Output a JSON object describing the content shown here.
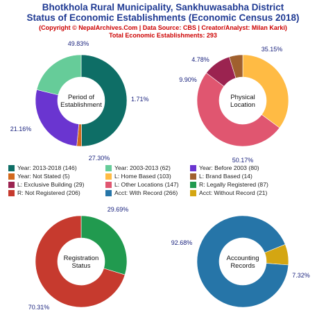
{
  "header": {
    "title_line1": "Bhotkhola Rural Municipality, Sankhuwasabha District",
    "title_line2": "Status of Economic Establishments (Economic Census 2018)",
    "credit": "(Copyright © NepalArchives.Com | Data Source: CBS | Creator/Analyst: Milan Karki)",
    "total": "Total Economic Establishments: 293"
  },
  "colors": {
    "year_2013_2018": "#0e6e66",
    "year_2003_2013": "#66cc99",
    "year_before_2003": "#6a35d0",
    "year_not_stated": "#d2691e",
    "home_based": "#ffbb44",
    "brand_based": "#a0602e",
    "exclusive_building": "#9b2350",
    "other_locations": "#e05670",
    "legally_registered": "#219a4f",
    "not_registered": "#c63a2e",
    "with_record": "#2675a8",
    "without_record": "#d4a612"
  },
  "chart_data": [
    {
      "type": "pie",
      "center_label": [
        "Period of",
        "Establishment"
      ],
      "slices": [
        {
          "label": "Year: 2013-2018",
          "value": 146,
          "pct": "49.83%",
          "color_key": "year_2013_2018"
        },
        {
          "label": "Year: Not Stated",
          "value": 5,
          "pct": "1.71%",
          "color_key": "year_not_stated"
        },
        {
          "label": "Year: Before 2003",
          "value": 80,
          "pct": "27.30%",
          "color_key": "year_before_2003"
        },
        {
          "label": "Year: 2003-2013",
          "value": 62,
          "pct": "21.16%",
          "color_key": "year_2003_2013"
        }
      ]
    },
    {
      "type": "pie",
      "center_label": [
        "Physical",
        "Location"
      ],
      "slices": [
        {
          "label": "L: Home Based",
          "value": 103,
          "pct": "35.15%",
          "color_key": "home_based"
        },
        {
          "label": "L: Other Locations",
          "value": 147,
          "pct": "50.17%",
          "color_key": "other_locations"
        },
        {
          "label": "L: Exclusive Building",
          "value": 29,
          "pct": "9.90%",
          "color_key": "exclusive_building"
        },
        {
          "label": "L: Brand Based",
          "value": 14,
          "pct": "4.78%",
          "color_key": "brand_based"
        }
      ]
    },
    {
      "type": "pie",
      "center_label": [
        "Registration",
        "Status"
      ],
      "slices": [
        {
          "label": "R: Legally Registered",
          "value": 87,
          "pct": "29.69%",
          "color_key": "legally_registered"
        },
        {
          "label": "R: Not Registered",
          "value": 206,
          "pct": "70.31%",
          "color_key": "not_registered"
        }
      ]
    },
    {
      "type": "pie",
      "center_label": [
        "Accounting",
        "Records"
      ],
      "slices": [
        {
          "label": "Acct: Without Record",
          "value": 21,
          "pct": "7.32%",
          "color_key": "without_record"
        },
        {
          "label": "Acct: With Record",
          "value": 266,
          "pct": "92.68%",
          "color_key": "with_record"
        }
      ]
    }
  ],
  "legend": [
    {
      "text": "Year: 2013-2018 (146)",
      "color_key": "year_2013_2018"
    },
    {
      "text": "Year: 2003-2013 (62)",
      "color_key": "year_2003_2013"
    },
    {
      "text": "Year: Before 2003 (80)",
      "color_key": "year_before_2003"
    },
    {
      "text": "Year: Not Stated (5)",
      "color_key": "year_not_stated"
    },
    {
      "text": "L: Home Based (103)",
      "color_key": "home_based"
    },
    {
      "text": "L: Brand Based (14)",
      "color_key": "brand_based"
    },
    {
      "text": "L: Exclusive Building (29)",
      "color_key": "exclusive_building"
    },
    {
      "text": "L: Other Locations (147)",
      "color_key": "other_locations"
    },
    {
      "text": "R: Legally Registered (87)",
      "color_key": "legally_registered"
    },
    {
      "text": "R: Not Registered (206)",
      "color_key": "not_registered"
    },
    {
      "text": "Acct: With Record (266)",
      "color_key": "with_record"
    },
    {
      "text": "Acct: Without Record (21)",
      "color_key": "without_record"
    }
  ]
}
